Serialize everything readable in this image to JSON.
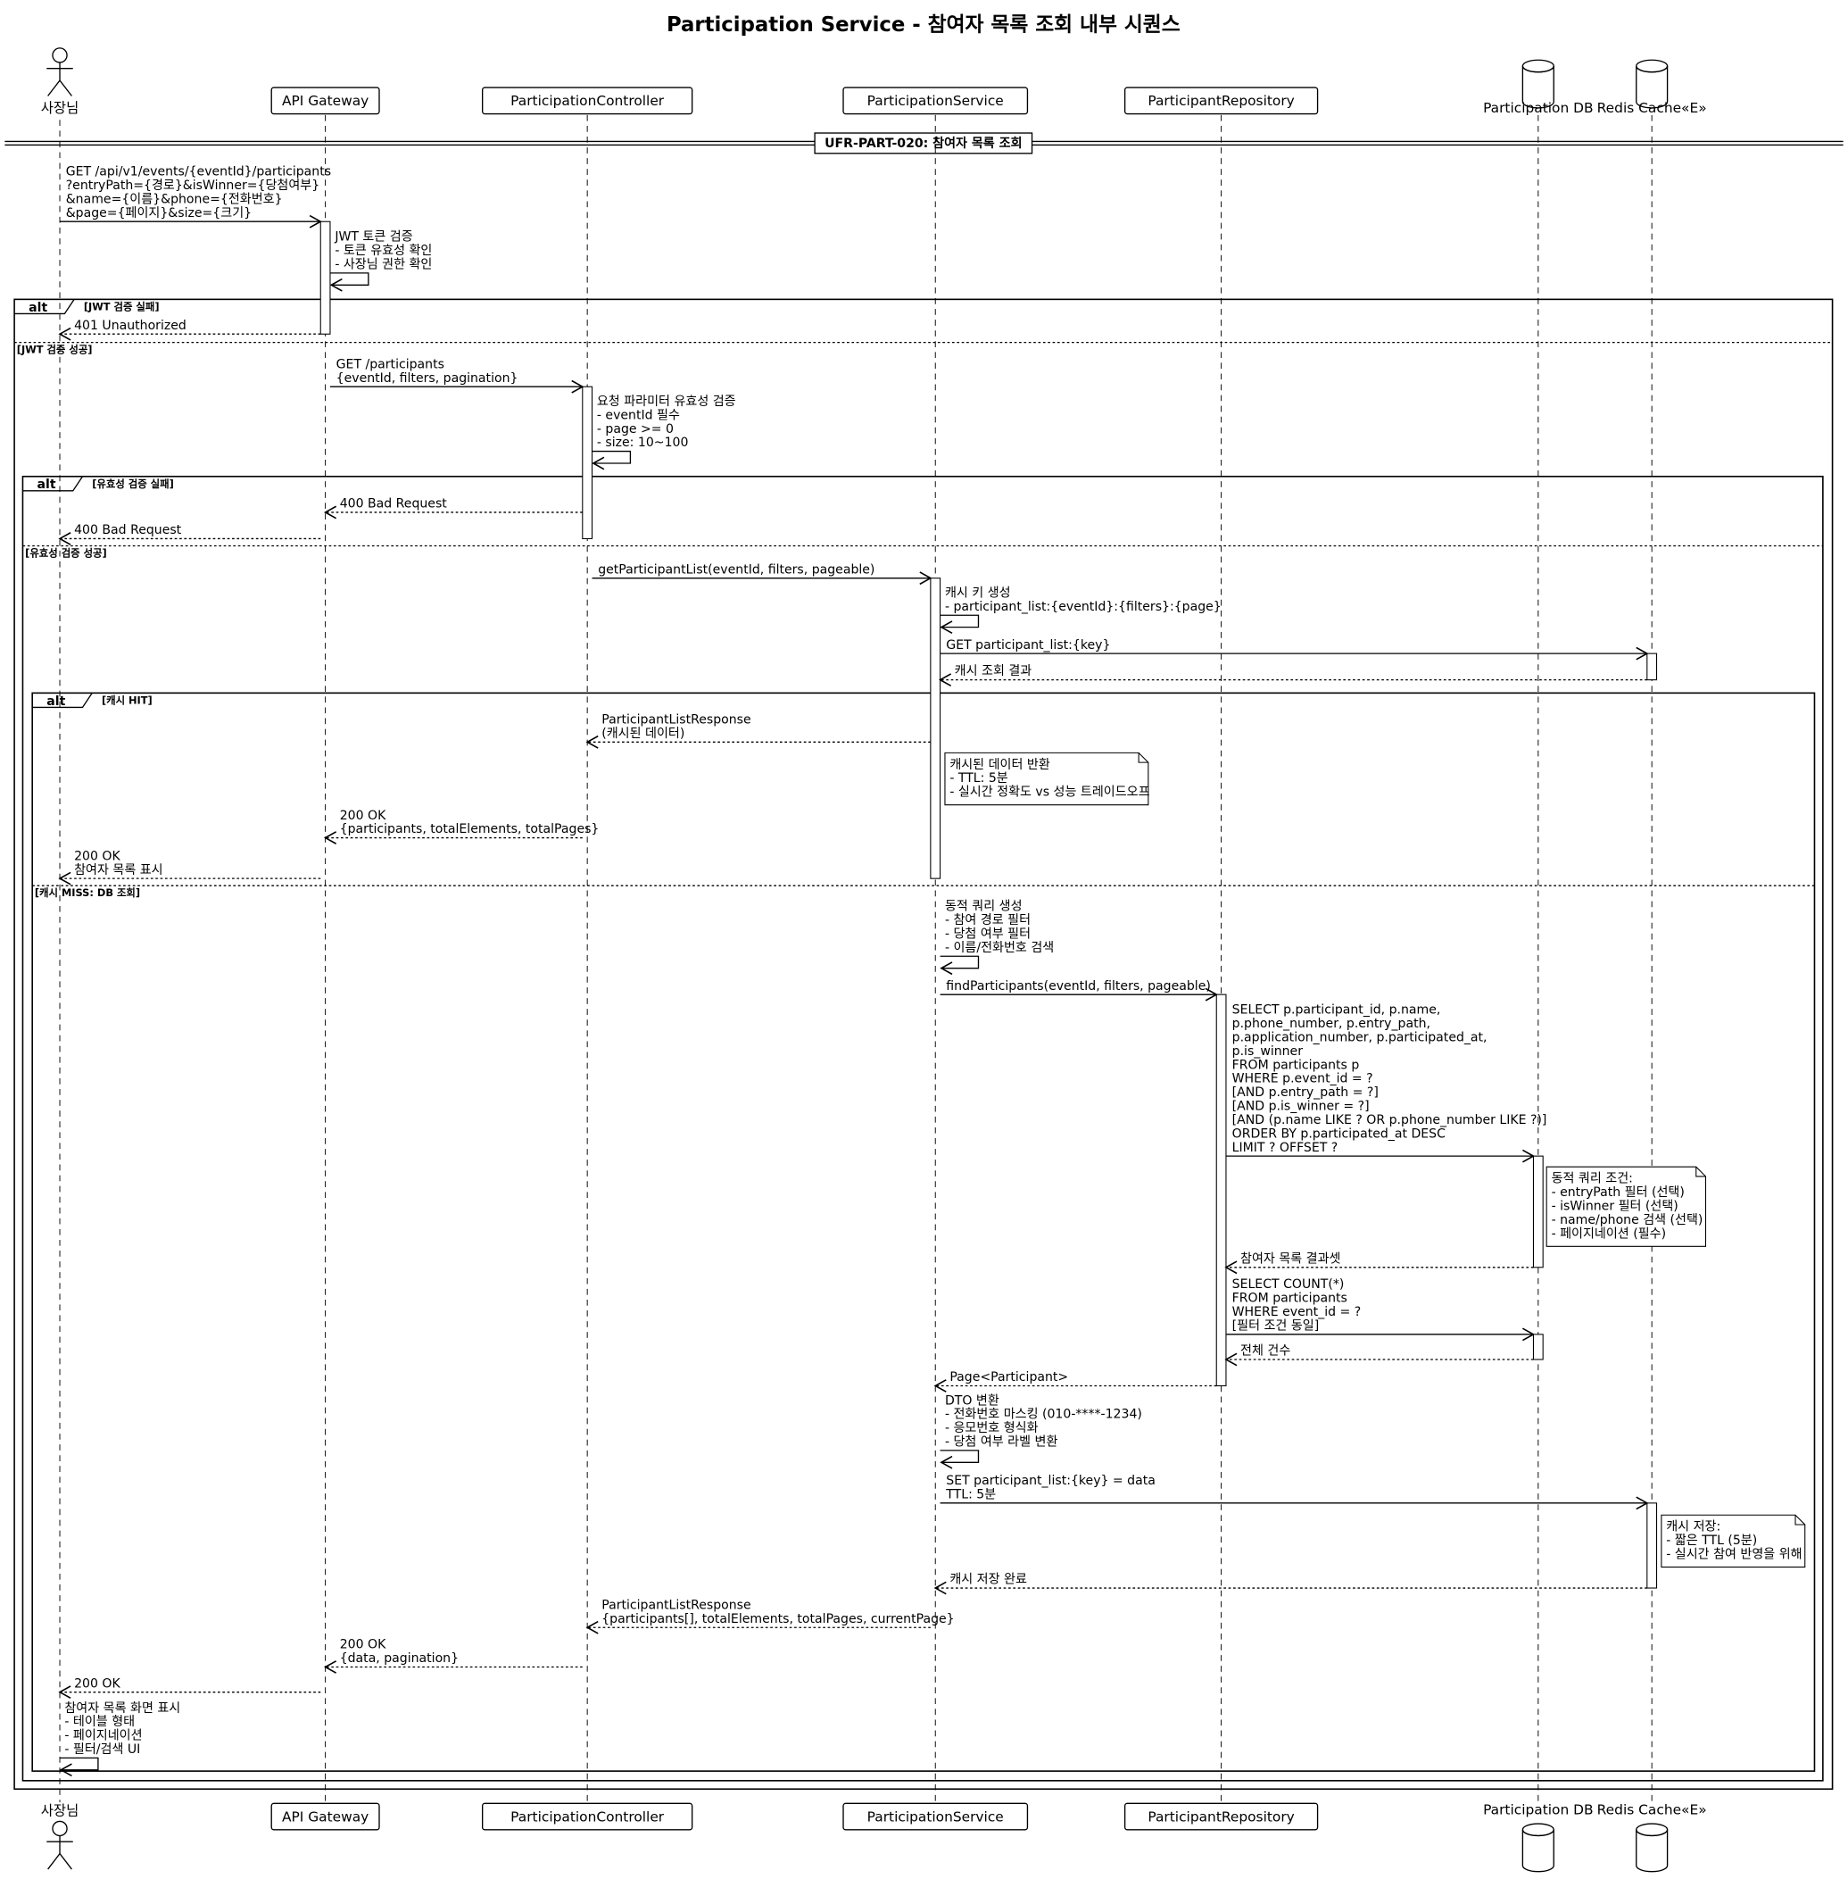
{
  "title": "Participation Service - 참여자 목록 조회 내부 시퀀스",
  "participants": [
    {
      "id": "owner",
      "name": "사장님",
      "type": "actor"
    },
    {
      "id": "gw",
      "name": "API Gateway",
      "type": "participant"
    },
    {
      "id": "ctrl",
      "name": "ParticipationController",
      "type": "participant"
    },
    {
      "id": "svc",
      "name": "ParticipationService",
      "type": "participant"
    },
    {
      "id": "repo",
      "name": "ParticipantRepository",
      "type": "participant"
    },
    {
      "id": "db",
      "name": "Participation DB",
      "type": "database"
    },
    {
      "id": "redis",
      "name": "Redis Cache«E»",
      "type": "database"
    }
  ],
  "section": "UFR-PART-020: 참여자 목록 조회",
  "alts": [
    {
      "label": "alt",
      "guards": [
        "[JWT 검증 실패]",
        "[JWT 검증 성공]"
      ]
    },
    {
      "label": "alt",
      "guards": [
        "[유효성 검증 실패]",
        "[유효성 검증 성공]"
      ]
    },
    {
      "label": "alt",
      "guards": [
        "[캐시 HIT]",
        "[캐시 MISS: DB 조회]"
      ]
    }
  ],
  "messages": [
    {
      "from": "owner",
      "to": "gw",
      "dashed": false,
      "lines": [
        "GET /api/v1/events/{eventId}/participants",
        "?entryPath={경로}&isWinner={당첨여부}",
        "&name={이름}&phone={전화번호}",
        "&page={페이지}&size={크기}"
      ]
    },
    {
      "from": "gw",
      "to": "gw",
      "dashed": false,
      "lines": [
        "JWT 토큰 검증",
        "- 토큰 유효성 확인",
        "- 사장님 권한 확인"
      ]
    },
    {
      "from": "gw",
      "to": "owner",
      "dashed": true,
      "lines": [
        "401 Unauthorized"
      ]
    },
    {
      "from": "gw",
      "to": "ctrl",
      "dashed": false,
      "lines": [
        "GET /participants",
        "{eventId, filters, pagination}"
      ]
    },
    {
      "from": "ctrl",
      "to": "ctrl",
      "dashed": false,
      "lines": [
        "요청 파라미터 유효성 검증",
        "- eventId 필수",
        "- page >= 0",
        "- size: 10~100"
      ]
    },
    {
      "from": "ctrl",
      "to": "gw",
      "dashed": true,
      "lines": [
        "400 Bad Request"
      ]
    },
    {
      "from": "gw",
      "to": "owner",
      "dashed": true,
      "lines": [
        "400 Bad Request"
      ]
    },
    {
      "from": "ctrl",
      "to": "svc",
      "dashed": false,
      "lines": [
        "getParticipantList(eventId, filters, pageable)"
      ]
    },
    {
      "from": "svc",
      "to": "svc",
      "dashed": false,
      "lines": [
        "캐시 키 생성",
        "- participant_list:{eventId}:{filters}:{page}"
      ]
    },
    {
      "from": "svc",
      "to": "redis",
      "dashed": false,
      "lines": [
        "GET participant_list:{key}"
      ]
    },
    {
      "from": "redis",
      "to": "svc",
      "dashed": true,
      "lines": [
        "캐시 조회 결과"
      ]
    },
    {
      "from": "svc",
      "to": "ctrl",
      "dashed": true,
      "lines": [
        "ParticipantListResponse",
        "(캐시된 데이터)"
      ]
    },
    {
      "from": "ctrl",
      "to": "gw",
      "dashed": true,
      "lines": [
        "200 OK",
        "{participants, totalElements, totalPages}"
      ]
    },
    {
      "from": "gw",
      "to": "owner",
      "dashed": true,
      "lines": [
        "200 OK",
        "참여자 목록 표시"
      ]
    },
    {
      "from": "svc",
      "to": "svc",
      "dashed": false,
      "lines": [
        "동적 쿼리 생성",
        "- 참여 경로 필터",
        "- 당첨 여부 필터",
        "- 이름/전화번호 검색"
      ]
    },
    {
      "from": "svc",
      "to": "repo",
      "dashed": false,
      "lines": [
        "findParticipants(eventId, filters, pageable)"
      ]
    },
    {
      "from": "repo",
      "to": "db",
      "dashed": false,
      "lines": [
        "SELECT p.participant_id, p.name,",
        "p.phone_number, p.entry_path,",
        "p.application_number, p.participated_at,",
        "p.is_winner",
        "FROM participants p",
        "WHERE p.event_id = ?",
        "[AND p.entry_path = ?]",
        "[AND p.is_winner = ?]",
        "[AND (p.name LIKE ? OR p.phone_number LIKE ?)]",
        "ORDER BY p.participated_at DESC",
        "LIMIT ? OFFSET ?"
      ]
    },
    {
      "from": "db",
      "to": "repo",
      "dashed": true,
      "lines": [
        "참여자 목록 결과셋"
      ]
    },
    {
      "from": "repo",
      "to": "db",
      "dashed": false,
      "lines": [
        "SELECT COUNT(*)",
        "FROM participants",
        "WHERE event_id = ?",
        "[필터 조건 동일]"
      ]
    },
    {
      "from": "db",
      "to": "repo",
      "dashed": true,
      "lines": [
        "전체 건수"
      ]
    },
    {
      "from": "repo",
      "to": "svc",
      "dashed": true,
      "lines": [
        "Page<Participant>"
      ]
    },
    {
      "from": "svc",
      "to": "svc",
      "dashed": false,
      "lines": [
        "DTO 변환",
        "- 전화번호 마스킹 (010-****-1234)",
        "- 응모번호 형식화",
        "- 당첨 여부 라벨 변환"
      ]
    },
    {
      "from": "svc",
      "to": "redis",
      "dashed": false,
      "lines": [
        "SET participant_list:{key} = data",
        "TTL: 5분"
      ]
    },
    {
      "from": "redis",
      "to": "svc",
      "dashed": true,
      "lines": [
        "캐시 저장 완료"
      ]
    },
    {
      "from": "svc",
      "to": "ctrl",
      "dashed": true,
      "lines": [
        "ParticipantListResponse",
        "{participants[], totalElements, totalPages, currentPage}"
      ]
    },
    {
      "from": "ctrl",
      "to": "gw",
      "dashed": true,
      "lines": [
        "200 OK",
        "{data, pagination}"
      ]
    },
    {
      "from": "gw",
      "to": "owner",
      "dashed": true,
      "lines": [
        "200 OK"
      ]
    },
    {
      "from": "owner",
      "to": "owner",
      "dashed": false,
      "lines": [
        "참여자 목록 화면 표시",
        "- 테이블 형태",
        "- 페이지네이션",
        "- 필터/검색 UI"
      ]
    }
  ],
  "notes": [
    {
      "over": "svc",
      "lines": [
        "캐시된 데이터 반환",
        "- TTL: 5분",
        "- 실시간 정확도 vs 성능 트레이드오프"
      ]
    },
    {
      "over": "db",
      "lines": [
        "동적 쿼리 조건:",
        "- entryPath 필터 (선택)",
        "- isWinner 필터 (선택)",
        "- name/phone 검색 (선택)",
        "- 페이지네이션 (필수)"
      ]
    },
    {
      "over": "redis",
      "lines": [
        "캐시 저장:",
        "- 짧은 TTL (5분)",
        "- 실시간 참여 반영을 위해"
      ]
    }
  ]
}
